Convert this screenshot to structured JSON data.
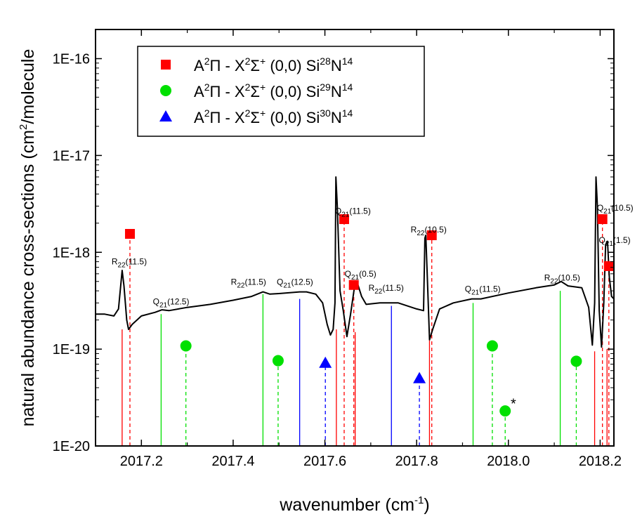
{
  "chart_data": {
    "type": "line",
    "xlabel": "wavenumber (cm-1)",
    "xlabel_parts": {
      "main": "wavenumber (cm",
      "sup": "-1",
      "end": ")"
    },
    "ylabel": "natural abundance cross-sections (cm2/molecule",
    "ylabel_parts": {
      "main": "natural abundance cross-sections (cm",
      "sup": "2",
      "end": "/molecule"
    },
    "x_axis": {
      "range": [
        2017.1,
        2018.23
      ],
      "ticks": [
        2017.2,
        2017.4,
        2017.6,
        2017.8,
        2018.0,
        2018.2
      ],
      "tick_labels": [
        "2017.2",
        "2017.4",
        "2017.6",
        "2017.8",
        "2018.0",
        "2018.2"
      ]
    },
    "y_axis": {
      "scale": "log",
      "range": [
        1e-20,
        2e-16
      ],
      "ticks": [
        1e-20,
        1e-19,
        1e-18,
        1e-17,
        1e-16
      ],
      "tick_labels": [
        "1E-20",
        "1E-19",
        "1E-18",
        "1E-17",
        "1E-16"
      ]
    },
    "grid": false,
    "legend_position": "top-left",
    "legend": [
      {
        "marker": "square",
        "color": "#ff0000",
        "pre": "A",
        "pre_sup": "2",
        "pi": "Π - X",
        "x_sup": "2",
        "sigma": "Σ",
        "sigma_sup": "+",
        "band": " (0,0) Si",
        "iso_sup": "28",
        "n": "N",
        "n_sup": "14"
      },
      {
        "marker": "circle",
        "color": "#00e000",
        "pre": "A",
        "pre_sup": "2",
        "pi": "Π - X",
        "x_sup": "2",
        "sigma": "Σ",
        "sigma_sup": "+",
        "band": " (0,0) Si",
        "iso_sup": "29",
        "n": "N",
        "n_sup": "14"
      },
      {
        "marker": "triangle",
        "color": "#0000ff",
        "pre": "A",
        "pre_sup": "2",
        "pi": "Π - X",
        "x_sup": "2",
        "sigma": "Σ",
        "sigma_sup": "+",
        "band": " (0,0) Si",
        "iso_sup": "30",
        "n": "N",
        "n_sup": "14"
      }
    ],
    "spectrum": {
      "name": "observed spectrum",
      "color": "#000000",
      "points": [
        [
          2017.1,
          2.3e-19
        ],
        [
          2017.12,
          2.3e-19
        ],
        [
          2017.14,
          2.2e-19
        ],
        [
          2017.15,
          2.6e-19
        ],
        [
          2017.158,
          6.5e-19
        ],
        [
          2017.162,
          4.5e-19
        ],
        [
          2017.168,
          2e-19
        ],
        [
          2017.172,
          1.6e-19
        ],
        [
          2017.18,
          1.8e-19
        ],
        [
          2017.2,
          2.2e-19
        ],
        [
          2017.23,
          2.4e-19
        ],
        [
          2017.245,
          2.55e-19
        ],
        [
          2017.26,
          2.5e-19
        ],
        [
          2017.3,
          2.7e-19
        ],
        [
          2017.35,
          2.9e-19
        ],
        [
          2017.4,
          3.2e-19
        ],
        [
          2017.44,
          3.5e-19
        ],
        [
          2017.465,
          3.9e-19
        ],
        [
          2017.48,
          3.7e-19
        ],
        [
          2017.5,
          3.75e-19
        ],
        [
          2017.545,
          3.9e-19
        ],
        [
          2017.56,
          3.9e-19
        ],
        [
          2017.58,
          3.7e-19
        ],
        [
          2017.595,
          3e-19
        ],
        [
          2017.605,
          1.8e-19
        ],
        [
          2017.612,
          1.4e-19
        ],
        [
          2017.618,
          1.6e-19
        ],
        [
          2017.622,
          3e-19
        ],
        [
          2017.624,
          6e-18
        ],
        [
          2017.627,
          3e-18
        ],
        [
          2017.633,
          4e-19
        ],
        [
          2017.64,
          2.5e-19
        ],
        [
          2017.648,
          1.35e-19
        ],
        [
          2017.656,
          2.3e-19
        ],
        [
          2017.664,
          4.2e-19
        ],
        [
          2017.672,
          4.6e-19
        ],
        [
          2017.68,
          3.5e-19
        ],
        [
          2017.69,
          2.9e-19
        ],
        [
          2017.72,
          3e-19
        ],
        [
          2017.76,
          3e-19
        ],
        [
          2017.8,
          2.6e-19
        ],
        [
          2017.815,
          2.5e-19
        ],
        [
          2017.818,
          1.4e-18
        ],
        [
          2017.82,
          1.5e-18
        ],
        [
          2017.823,
          6e-19
        ],
        [
          2017.828,
          1.25e-19
        ],
        [
          2017.835,
          1.6e-19
        ],
        [
          2017.85,
          2.6e-19
        ],
        [
          2017.88,
          3e-19
        ],
        [
          2017.92,
          3.3e-19
        ],
        [
          2017.94,
          3.3e-19
        ],
        [
          2018.0,
          3.8e-19
        ],
        [
          2018.06,
          4.3e-19
        ],
        [
          2018.1,
          4.6e-19
        ],
        [
          2018.115,
          5e-19
        ],
        [
          2018.13,
          4.5e-19
        ],
        [
          2018.16,
          4.3e-19
        ],
        [
          2018.175,
          2.7e-19
        ],
        [
          2018.183,
          1.1e-19
        ],
        [
          2018.188,
          3e-19
        ],
        [
          2018.191,
          6e-18
        ],
        [
          2018.194,
          3e-18
        ],
        [
          2018.198,
          2.5e-19
        ],
        [
          2018.203,
          1.05e-19
        ],
        [
          2018.208,
          3e-19
        ],
        [
          2018.212,
          1.2e-18
        ],
        [
          2018.216,
          1.3e-18
        ],
        [
          2018.22,
          5.5e-19
        ],
        [
          2018.225,
          3.5e-19
        ],
        [
          2018.23,
          3.3e-19
        ]
      ]
    },
    "series": [
      {
        "name": "A2Π - X2Σ+ (0,0) Si28N14",
        "color": "#ff0000",
        "marker": "square",
        "points": [
          [
            2017.175,
            1.55e-18
          ],
          [
            2017.642,
            2.2e-18
          ],
          [
            2017.663,
            4.6e-19
          ],
          [
            2017.833,
            1.5e-18
          ],
          [
            2018.205,
            2.2e-18
          ],
          [
            2018.219,
            7.2e-19
          ]
        ]
      },
      {
        "name": "A2Π - X2Σ+ (0,0) Si29N14",
        "color": "#00e000",
        "marker": "circle",
        "points": [
          [
            2017.297,
            1.08e-19
          ],
          [
            2017.498,
            7.6e-20
          ],
          [
            2017.965,
            1.08e-19
          ],
          [
            2017.993,
            2.3e-20
          ],
          [
            2018.148,
            7.5e-20
          ]
        ]
      },
      {
        "name": "A2Π - X2Σ+ (0,0) Si30N14",
        "color": "#0000ff",
        "marker": "triangle",
        "points": [
          [
            2017.601,
            7.2e-20
          ],
          [
            2017.806,
            5e-20
          ]
        ]
      }
    ],
    "stick_lines": [
      {
        "color": "#ff0000",
        "style": "solid",
        "x": 2017.158,
        "top": 1.6e-19
      },
      {
        "color": "#ff0000",
        "style": "solid",
        "x": 2017.625,
        "top": 1.6e-19
      },
      {
        "color": "#ff0000",
        "style": "solid",
        "x": 2017.666,
        "top": 1.5e-19
      },
      {
        "color": "#ff0000",
        "style": "solid",
        "x": 2017.828,
        "top": 1.5e-19
      },
      {
        "color": "#ff0000",
        "style": "solid",
        "x": 2018.188,
        "top": 9.5e-20
      },
      {
        "color": "#ff0000",
        "style": "solid",
        "x": 2018.215,
        "top": 1e-19
      },
      {
        "color": "#00e000",
        "style": "solid",
        "x": 2017.243,
        "top": 2.3e-19
      },
      {
        "color": "#00e000",
        "style": "solid",
        "x": 2017.465,
        "top": 3.7e-19
      },
      {
        "color": "#00e000",
        "style": "solid",
        "x": 2017.923,
        "top": 3e-19
      },
      {
        "color": "#00e000",
        "style": "solid",
        "x": 2018.113,
        "top": 4e-19
      },
      {
        "color": "#0000ff",
        "style": "solid",
        "x": 2017.545,
        "top": 3.3e-19
      },
      {
        "color": "#0000ff",
        "style": "solid",
        "x": 2017.745,
        "top": 2.8e-19
      },
      {
        "color": "#ff0000",
        "style": "dashed",
        "x": 2017.175,
        "top": 1.55e-18
      },
      {
        "color": "#ff0000",
        "style": "dashed",
        "x": 2017.642,
        "top": 2.2e-18
      },
      {
        "color": "#ff0000",
        "style": "dashed",
        "x": 2017.663,
        "top": 4.6e-19
      },
      {
        "color": "#ff0000",
        "style": "dashed",
        "x": 2017.833,
        "top": 1.5e-18
      },
      {
        "color": "#ff0000",
        "style": "dashed",
        "x": 2018.205,
        "top": 2.2e-18
      },
      {
        "color": "#ff0000",
        "style": "dashed",
        "x": 2018.219,
        "top": 7.2e-19
      },
      {
        "color": "#00e000",
        "style": "dashed",
        "x": 2017.297,
        "top": 1.08e-19
      },
      {
        "color": "#00e000",
        "style": "dashed",
        "x": 2017.498,
        "top": 7.6e-20
      },
      {
        "color": "#00e000",
        "style": "dashed",
        "x": 2017.965,
        "top": 1.08e-19
      },
      {
        "color": "#00e000",
        "style": "dashed",
        "x": 2017.993,
        "top": 2.3e-20
      },
      {
        "color": "#00e000",
        "style": "dashed",
        "x": 2018.148,
        "top": 7.5e-20
      },
      {
        "color": "#0000ff",
        "style": "dashed",
        "x": 2017.601,
        "top": 7.2e-20
      },
      {
        "color": "#0000ff",
        "style": "dashed",
        "x": 2017.806,
        "top": 5e-20
      }
    ],
    "annotations": [
      {
        "text": "R",
        "sub": "22",
        "rest": "(11.5)",
        "x": 2017.135,
        "y": 7.5e-19
      },
      {
        "text": "Q",
        "sub": "21",
        "rest": "(12.5)",
        "x": 2017.225,
        "y": 2.9e-19
      },
      {
        "text": "R",
        "sub": "22",
        "rest": "(11.5)",
        "x": 2017.395,
        "y": 4.6e-19
      },
      {
        "text": "Q",
        "sub": "21",
        "rest": "(12.5)",
        "x": 2017.495,
        "y": 4.6e-19
      },
      {
        "text": "Q",
        "sub": "21",
        "rest": "(11.5)",
        "x": 2017.622,
        "y": 2.5e-18
      },
      {
        "text": "Q",
        "sub": "21",
        "rest": "(0.5)",
        "x": 2017.643,
        "y": 5.6e-19
      },
      {
        "text": "R",
        "sub": "22",
        "rest": "(11.5)",
        "x": 2017.695,
        "y": 4e-19
      },
      {
        "text": "R",
        "sub": "22",
        "rest": "(10.5)",
        "x": 2017.787,
        "y": 1.6e-18
      },
      {
        "text": "Q",
        "sub": "21",
        "rest": "(11.5)",
        "x": 2017.905,
        "y": 3.9e-19
      },
      {
        "text": "R",
        "sub": "22",
        "rest": "(10.5)",
        "x": 2018.078,
        "y": 5.1e-19
      },
      {
        "text": "Q",
        "sub": "21",
        "rest": "(10.5)",
        "x": 2018.193,
        "y": 2.7e-18
      },
      {
        "text": "Q",
        "sub": "21",
        "rest": "(1.5)",
        "x": 2018.197,
        "y": 1.25e-18
      }
    ],
    "asterisk": {
      "text": "*",
      "x": 2018.005,
      "y": 2.45e-20
    }
  }
}
